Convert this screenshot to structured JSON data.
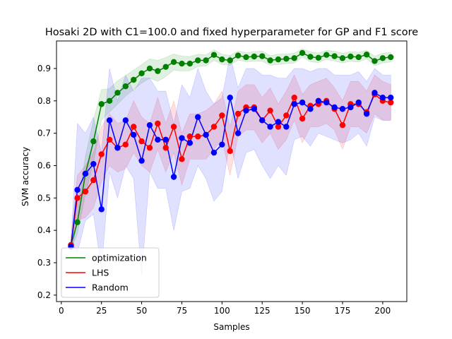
{
  "chart_data": {
    "type": "line",
    "title": "Hosaki 2D with C1=100.0 and fixed hyperparameter for GP and F1 score",
    "xlabel": "Samples",
    "ylabel": "SVM accuracy",
    "xlim": [
      -3,
      215
    ],
    "ylim": [
      0.18,
      0.985
    ],
    "xticks": [
      0,
      25,
      50,
      75,
      100,
      125,
      150,
      175,
      200
    ],
    "yticks": [
      0.2,
      0.3,
      0.4,
      0.5,
      0.6,
      0.7,
      0.8,
      0.9
    ],
    "grid": false,
    "legend_position": "lower-left",
    "x": [
      6,
      10,
      15,
      20,
      25,
      30,
      35,
      40,
      45,
      50,
      55,
      60,
      65,
      70,
      75,
      80,
      85,
      90,
      95,
      100,
      105,
      110,
      115,
      120,
      125,
      130,
      135,
      140,
      145,
      150,
      155,
      160,
      165,
      170,
      175,
      180,
      185,
      190,
      195,
      200,
      205
    ],
    "series": [
      {
        "name": "optimization",
        "color": "#008000",
        "values": [
          0.355,
          0.425,
          0.575,
          0.675,
          0.79,
          0.8,
          0.825,
          0.845,
          0.865,
          0.885,
          0.9,
          0.892,
          0.905,
          0.92,
          0.915,
          0.915,
          0.925,
          0.925,
          0.942,
          0.928,
          0.925,
          0.94,
          0.935,
          0.937,
          0.938,
          0.925,
          0.928,
          0.93,
          0.932,
          0.948,
          0.936,
          0.933,
          0.942,
          0.938,
          0.932,
          0.937,
          0.935,
          0.943,
          0.923,
          0.932,
          0.935
        ],
        "band_low": [
          0.34,
          0.39,
          0.51,
          0.61,
          0.74,
          0.765,
          0.79,
          0.815,
          0.835,
          0.855,
          0.87,
          0.86,
          0.875,
          0.895,
          0.892,
          0.893,
          0.906,
          0.908,
          0.925,
          0.912,
          0.91,
          0.926,
          0.921,
          0.922,
          0.922,
          0.91,
          0.912,
          0.915,
          0.917,
          0.935,
          0.921,
          0.918,
          0.928,
          0.923,
          0.917,
          0.922,
          0.92,
          0.93,
          0.908,
          0.917,
          0.92
        ],
        "band_high": [
          0.37,
          0.46,
          0.63,
          0.74,
          0.835,
          0.838,
          0.862,
          0.878,
          0.895,
          0.912,
          0.93,
          0.925,
          0.934,
          0.945,
          0.938,
          0.937,
          0.944,
          0.942,
          0.958,
          0.944,
          0.94,
          0.954,
          0.949,
          0.952,
          0.954,
          0.94,
          0.944,
          0.945,
          0.947,
          0.961,
          0.951,
          0.948,
          0.956,
          0.953,
          0.947,
          0.952,
          0.95,
          0.956,
          0.938,
          0.947,
          0.95
        ]
      },
      {
        "name": "LHS",
        "color": "#ff0000",
        "values": [
          0.355,
          0.5,
          0.52,
          0.555,
          0.635,
          0.68,
          0.655,
          0.665,
          0.72,
          0.675,
          0.655,
          0.73,
          0.655,
          0.72,
          0.62,
          0.69,
          0.69,
          0.695,
          0.72,
          0.755,
          0.645,
          0.76,
          0.78,
          0.78,
          0.74,
          0.77,
          0.72,
          0.755,
          0.81,
          0.745,
          0.785,
          0.79,
          0.8,
          0.775,
          0.725,
          0.79,
          0.79,
          0.765,
          0.82,
          0.8,
          0.795
        ],
        "band_low": [
          0.33,
          0.43,
          0.44,
          0.47,
          0.55,
          0.6,
          0.58,
          0.59,
          0.64,
          0.6,
          0.58,
          0.65,
          0.58,
          0.64,
          0.54,
          0.62,
          0.62,
          0.62,
          0.65,
          0.68,
          0.57,
          0.69,
          0.71,
          0.71,
          0.67,
          0.7,
          0.65,
          0.68,
          0.74,
          0.67,
          0.72,
          0.72,
          0.73,
          0.71,
          0.65,
          0.72,
          0.72,
          0.7,
          0.76,
          0.74,
          0.74
        ],
        "band_high": [
          0.38,
          0.57,
          0.6,
          0.64,
          0.72,
          0.76,
          0.73,
          0.74,
          0.8,
          0.75,
          0.73,
          0.81,
          0.73,
          0.8,
          0.7,
          0.76,
          0.76,
          0.77,
          0.79,
          0.83,
          0.72,
          0.83,
          0.85,
          0.85,
          0.81,
          0.84,
          0.79,
          0.83,
          0.88,
          0.82,
          0.85,
          0.86,
          0.87,
          0.84,
          0.8,
          0.86,
          0.86,
          0.83,
          0.88,
          0.86,
          0.85
        ]
      },
      {
        "name": "Random",
        "color": "#0000ff",
        "values": [
          0.35,
          0.525,
          0.575,
          0.605,
          0.465,
          0.74,
          0.655,
          0.74,
          0.695,
          0.615,
          0.725,
          0.68,
          0.68,
          0.565,
          0.685,
          0.67,
          0.75,
          0.695,
          0.64,
          0.665,
          0.81,
          0.7,
          0.77,
          0.775,
          0.74,
          0.72,
          0.735,
          0.72,
          0.79,
          0.795,
          0.775,
          0.8,
          0.795,
          0.78,
          0.775,
          0.78,
          0.795,
          0.76,
          0.825,
          0.81,
          0.81
        ],
        "band_low": [
          0.34,
          0.33,
          0.43,
          0.45,
          0.28,
          0.58,
          0.5,
          0.6,
          0.56,
          0.26,
          0.58,
          0.53,
          0.53,
          0.4,
          0.52,
          0.53,
          0.6,
          0.56,
          0.49,
          0.52,
          0.68,
          0.56,
          0.64,
          0.65,
          0.6,
          0.56,
          0.6,
          0.57,
          0.68,
          0.69,
          0.66,
          0.7,
          0.69,
          0.68,
          0.67,
          0.68,
          0.7,
          0.66,
          0.75,
          0.74,
          0.74
        ],
        "band_high": [
          0.36,
          0.73,
          0.7,
          0.75,
          0.64,
          0.9,
          0.8,
          0.88,
          0.83,
          0.87,
          0.87,
          0.83,
          0.83,
          0.73,
          0.85,
          0.81,
          0.9,
          0.83,
          0.79,
          0.81,
          0.94,
          0.84,
          0.9,
          0.9,
          0.88,
          0.88,
          0.87,
          0.87,
          0.9,
          0.9,
          0.89,
          0.9,
          0.9,
          0.88,
          0.88,
          0.88,
          0.89,
          0.86,
          0.9,
          0.88,
          0.88
        ]
      }
    ]
  }
}
